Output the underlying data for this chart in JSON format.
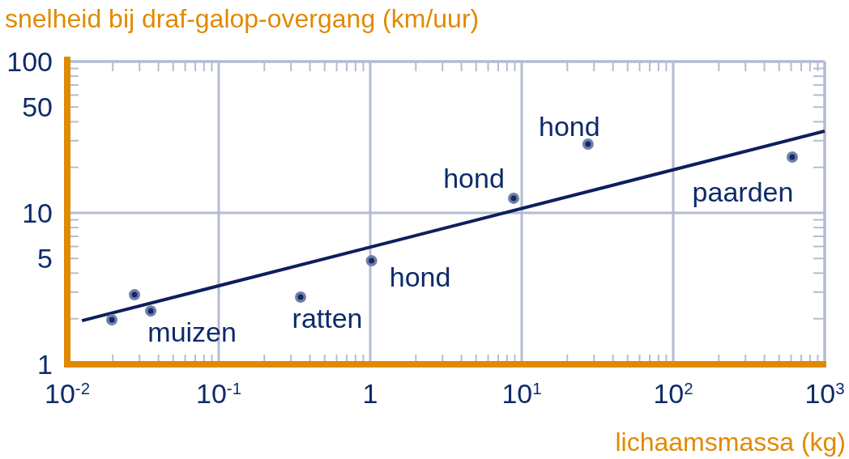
{
  "chart_data": {
    "type": "scatter",
    "ylabel": "snelheid bij draf-galop-overgang (km/uur)",
    "xlabel": "lichaamsmassa (kg)",
    "log": "xy",
    "grid": true,
    "xlim": [
      0.01,
      1000
    ],
    "ylim": [
      1,
      100
    ],
    "xticks": [
      {
        "value": 0.01,
        "label": "10$^{-2}$"
      },
      {
        "value": 0.02,
        "label": null
      },
      {
        "value": 0.03,
        "label": null
      },
      {
        "value": 0.04,
        "label": null
      },
      {
        "value": 0.05,
        "label": null
      },
      {
        "value": 0.06,
        "label": null
      },
      {
        "value": 0.07,
        "label": null
      },
      {
        "value": 0.08,
        "label": null
      },
      {
        "value": 0.09,
        "label": null
      },
      {
        "value": 0.1,
        "label": "10$^{-1}$"
      },
      {
        "value": 0.2,
        "label": null
      },
      {
        "value": 0.3,
        "label": null
      },
      {
        "value": 0.4,
        "label": null
      },
      {
        "value": 0.5,
        "label": null
      },
      {
        "value": 0.6,
        "label": null
      },
      {
        "value": 0.7,
        "label": null
      },
      {
        "value": 0.8,
        "label": null
      },
      {
        "value": 0.9,
        "label": null
      },
      {
        "value": 1,
        "label": "1"
      },
      {
        "value": 2,
        "label": null
      },
      {
        "value": 3,
        "label": null
      },
      {
        "value": 4,
        "label": null
      },
      {
        "value": 5,
        "label": null
      },
      {
        "value": 6,
        "label": null
      },
      {
        "value": 7,
        "label": null
      },
      {
        "value": 8,
        "label": null
      },
      {
        "value": 9,
        "label": null
      },
      {
        "value": 10,
        "label": "10$^{1}$"
      },
      {
        "value": 20,
        "label": null
      },
      {
        "value": 30,
        "label": null
      },
      {
        "value": 40,
        "label": null
      },
      {
        "value": 50,
        "label": null
      },
      {
        "value": 60,
        "label": null
      },
      {
        "value": 70,
        "label": null
      },
      {
        "value": 80,
        "label": null
      },
      {
        "value": 90,
        "label": null
      },
      {
        "value": 100,
        "label": "10$^{2}$"
      },
      {
        "value": 200,
        "label": null
      },
      {
        "value": 300,
        "label": null
      },
      {
        "value": 400,
        "label": null
      },
      {
        "value": 500,
        "label": null
      },
      {
        "value": 600,
        "label": null
      },
      {
        "value": 700,
        "label": null
      },
      {
        "value": 800,
        "label": null
      },
      {
        "value": 900,
        "label": null
      },
      {
        "value": 1000,
        "label": "10$^{3}$"
      }
    ],
    "yticks": [
      1,
      {
        "value": 2,
        "label": null
      },
      {
        "value": 3,
        "label": null
      },
      {
        "value": 4,
        "label": null
      },
      5,
      {
        "value": 6,
        "label": null
      },
      {
        "value": 7,
        "label": null
      },
      {
        "value": 8,
        "label": null
      },
      {
        "value": 9,
        "label": null
      },
      10,
      {
        "value": 20,
        "label": null
      },
      {
        "value": 30,
        "label": null
      },
      {
        "value": 40,
        "label": null
      },
      50,
      {
        "value": 60,
        "label": null
      },
      {
        "value": 70,
        "label": null
      },
      {
        "value": 80,
        "label": null
      },
      {
        "value": 90,
        "label": null
      },
      100
    ],
    "series": [
      {
        "color": "#142a66",
        "marker": "circle",
        "x": [
          0.0197,
          0.0278,
          0.0356,
          0.347,
          1.02,
          8.84,
          27.4,
          611
        ],
        "values": [
          1.97,
          2.88,
          2.25,
          2.78,
          4.83,
          12.5,
          28.5,
          23.4
        ]
      },
      {
        "type": "line",
        "color": "#0d1f5c",
        "marker": "none",
        "x": [
          0.0125,
          1000
        ],
        "values": [
          1.94,
          34.7
        ]
      }
    ],
    "annotations": [
      {
        "text": "muizen",
        "x": 0.0356,
        "y": 2.25
      },
      {
        "text": "ratten",
        "x": 0.347,
        "y": 2.78
      },
      {
        "text": "hond",
        "x": 1.02,
        "y": 4.83
      },
      {
        "text": "hond",
        "x": 8.84,
        "y": 12.5
      },
      {
        "text": "hond",
        "x": 27.4,
        "y": 28.5
      },
      {
        "text": "paarden",
        "x": 611,
        "y": 23.4
      }
    ]
  }
}
